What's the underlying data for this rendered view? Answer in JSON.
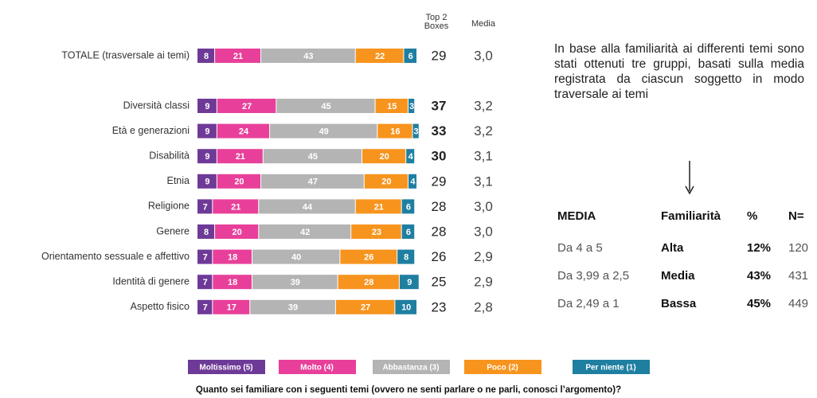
{
  "chart_data": {
    "type": "bar",
    "categories": [
      "TOTALE (trasversale ai temi)",
      "Diversità classi",
      "Età e generazioni",
      "Disabilità",
      "Etnia",
      "Religione",
      "Genere",
      "Orientamento sessuale e affettivo",
      "Identità di genere",
      "Aspetto fisico"
    ],
    "series": [
      {
        "name": "Moltissimo (5)",
        "color": "#6e3a97",
        "values": [
          8,
          9,
          9,
          9,
          9,
          7,
          8,
          7,
          7,
          7
        ]
      },
      {
        "name": "Molto (4)",
        "color": "#e8409a",
        "values": [
          21,
          27,
          24,
          21,
          20,
          21,
          20,
          18,
          18,
          17
        ]
      },
      {
        "name": "Abbastanza (3)",
        "color": "#b4b4b4",
        "values": [
          43,
          45,
          49,
          45,
          47,
          44,
          42,
          40,
          39,
          39
        ]
      },
      {
        "name": "Poco (2)",
        "color": "#f7941e",
        "values": [
          22,
          15,
          16,
          20,
          20,
          21,
          23,
          26,
          28,
          27
        ]
      },
      {
        "name": "Per niente (1)",
        "color": "#1f7fa1",
        "values": [
          6,
          3,
          3,
          4,
          4,
          6,
          6,
          8,
          9,
          10
        ]
      }
    ],
    "top2": {
      "header": "Top 2 Boxes",
      "values": [
        29,
        37,
        33,
        30,
        29,
        28,
        28,
        26,
        25,
        23
      ],
      "bold": [
        false,
        true,
        true,
        true,
        false,
        false,
        false,
        false,
        false,
        false
      ]
    },
    "media": {
      "header": "Media",
      "values": [
        "3,0",
        "3,2",
        "3,2",
        "3,1",
        "3,1",
        "3,0",
        "3,0",
        "2,9",
        "2,9",
        "2,8"
      ]
    },
    "footnote": "Quanto sei familiare con i seguenti temi (ovvero ne senti parlare o ne parli, conosci l’argomento)?"
  },
  "side_text": "In base alla familiarità ai differenti temi sono stati ottenuti tre gruppi, basati sulla media registrata da ciascun soggetto in modo traversale ai temi",
  "table": {
    "header": [
      "MEDIA",
      "Familiarità",
      "%",
      "N="
    ],
    "rows": [
      [
        "Da 4 a 5",
        "Alta",
        "12%",
        "120"
      ],
      [
        "Da 3,99 a 2,5",
        "Media",
        "43%",
        "431"
      ],
      [
        "Da 2,49 a 1",
        "Bassa",
        "45%",
        "449"
      ]
    ]
  }
}
